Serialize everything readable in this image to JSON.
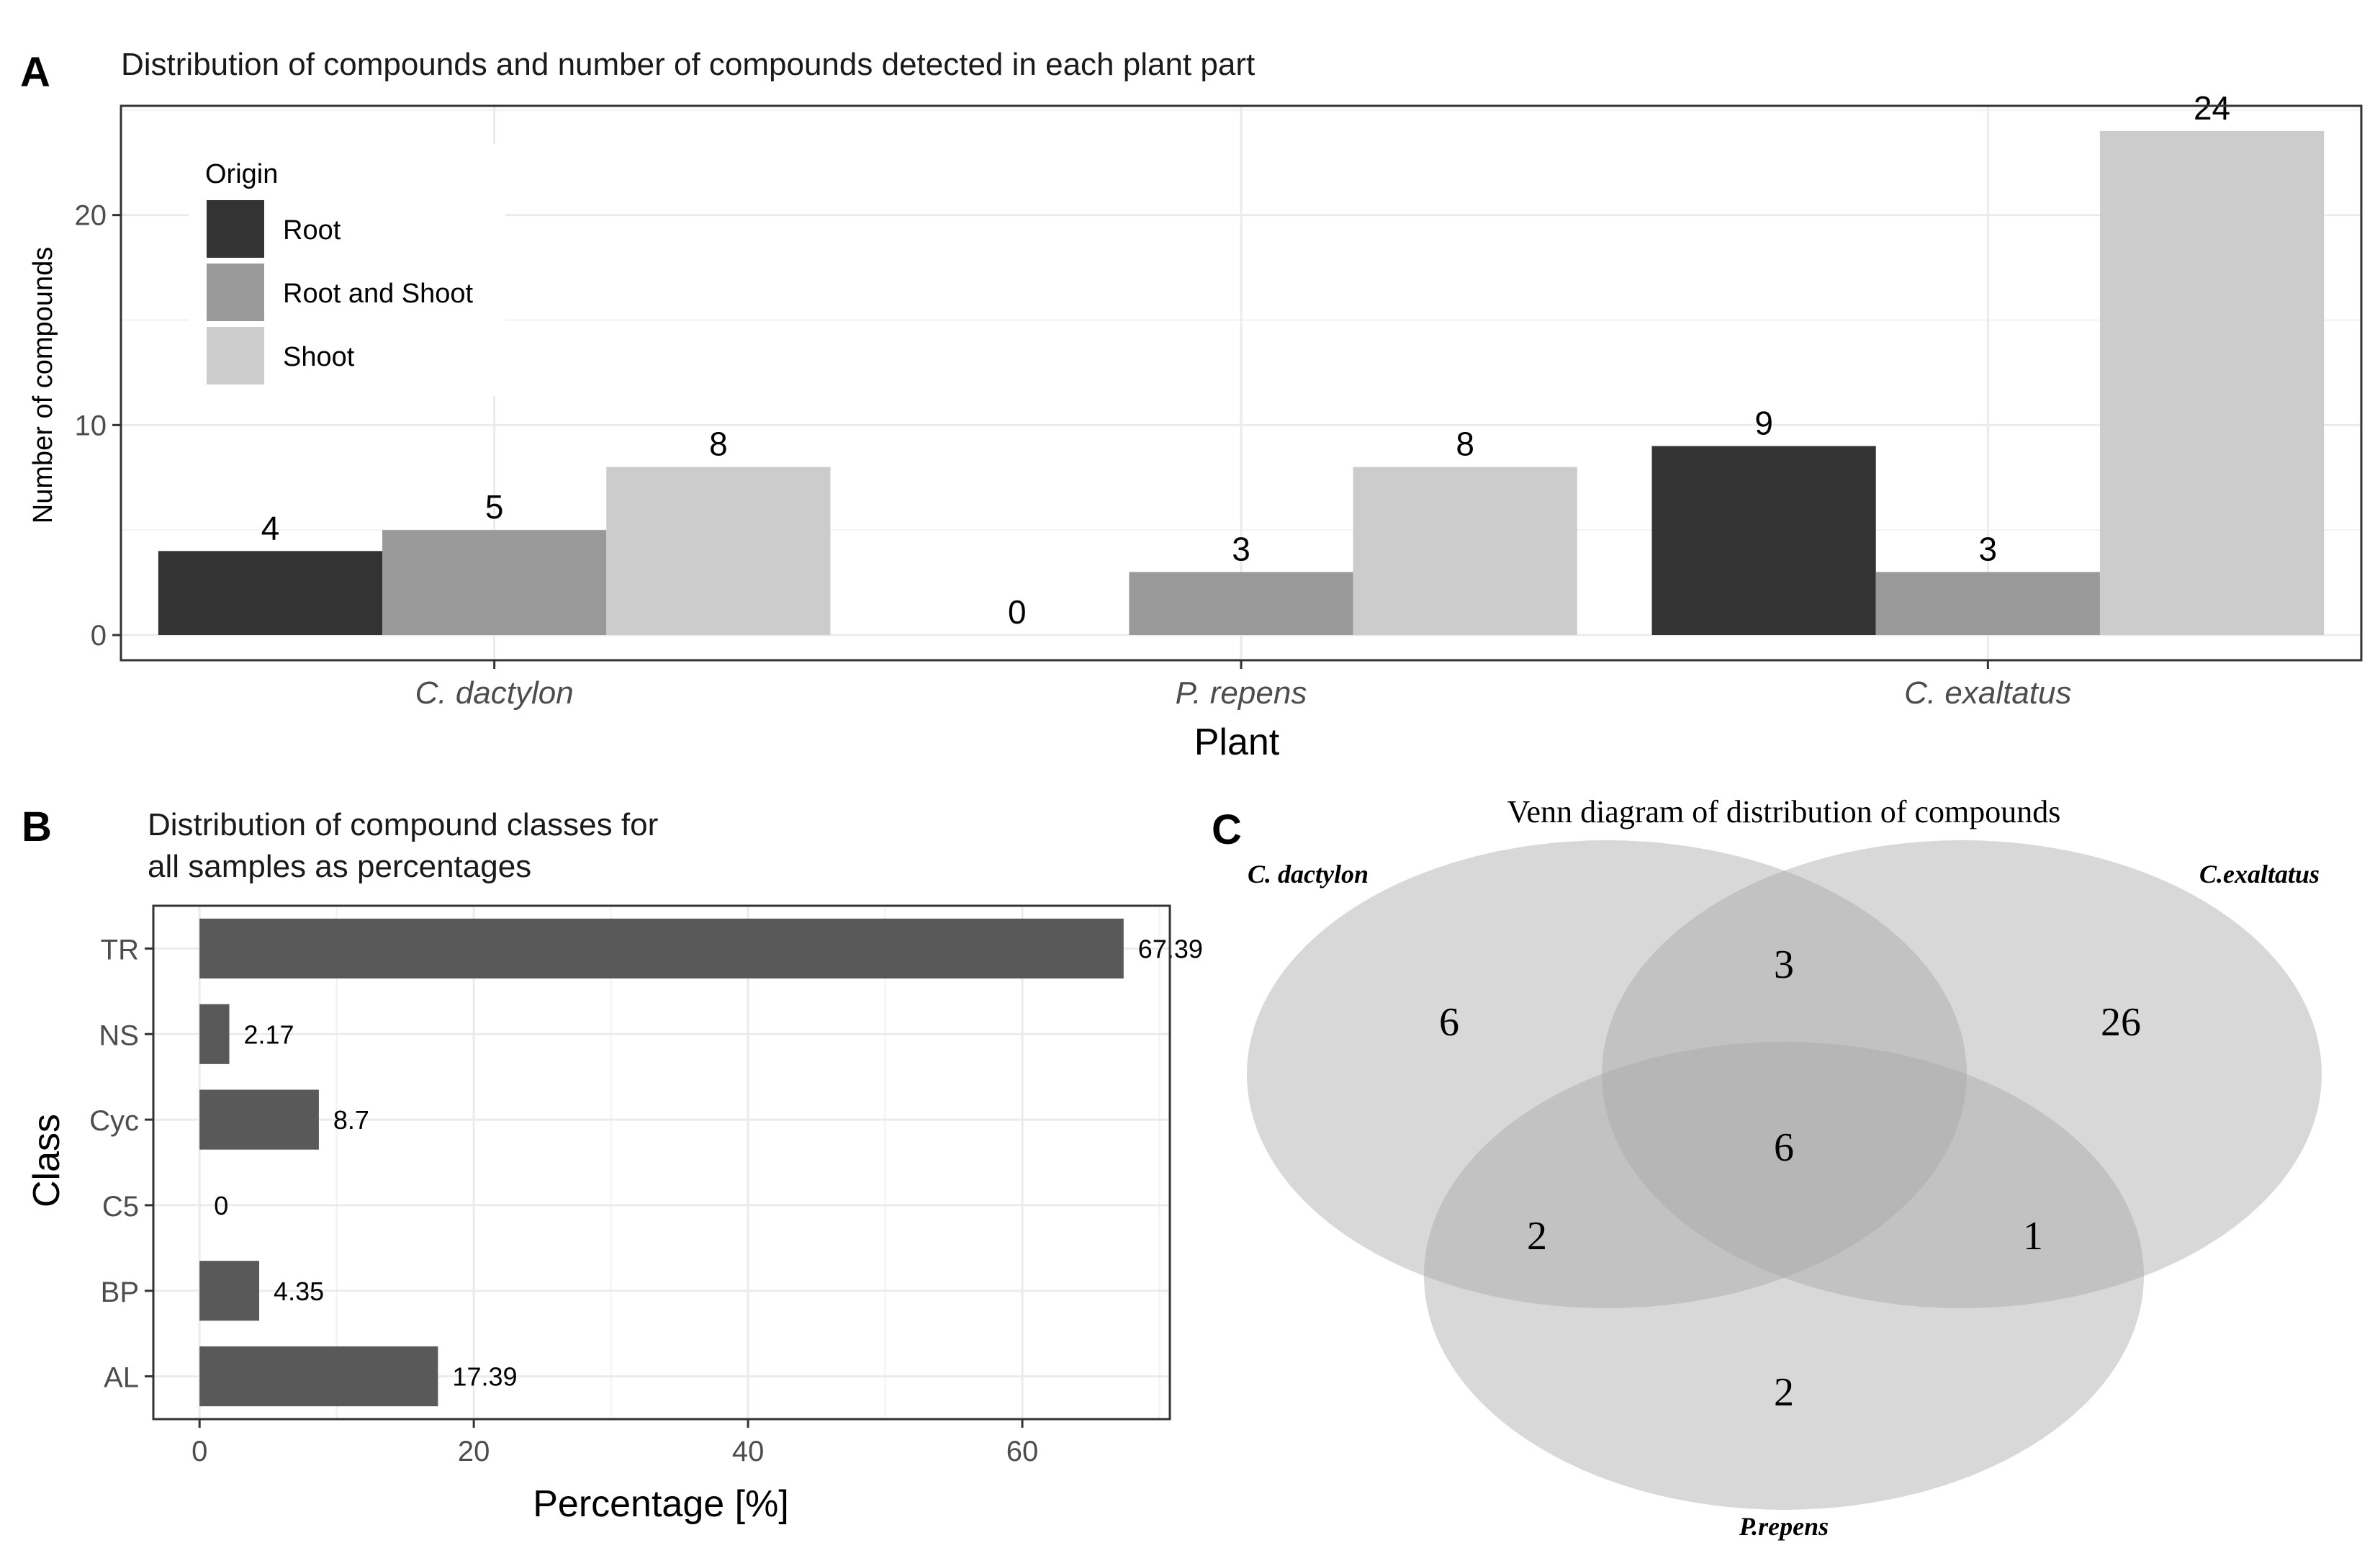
{
  "panels": {
    "a": {
      "letter": "A",
      "chart_data": {
        "type": "bar",
        "title": "Distribution of compounds and number of compounds detected in each plant part",
        "xlabel": "Plant",
        "ylabel": "Number of compounds",
        "categories": [
          "C. dactylon",
          "P. repens",
          "C. exaltatus"
        ],
        "series": [
          {
            "name": "Root",
            "color": "#333333",
            "values": [
              4,
              0,
              9
            ],
            "labels": [
              "4",
              "0",
              "9"
            ]
          },
          {
            "name": "Root and Shoot",
            "color": "#999999",
            "values": [
              5,
              3,
              3
            ],
            "labels": [
              "5",
              "3",
              "3"
            ]
          },
          {
            "name": "Shoot",
            "color": "#cccccc",
            "values": [
              8,
              8,
              24
            ],
            "labels": [
              "8",
              "8",
              "24"
            ]
          }
        ],
        "ylim": [
          -1.2,
          25.2
        ],
        "yticks": [
          0,
          10,
          20
        ],
        "ytick_labels": [
          "0",
          "10",
          "20"
        ],
        "legend_title": "Origin",
        "legend_position": "top-left",
        "grid": true
      }
    },
    "b": {
      "letter": "B",
      "chart_data": {
        "type": "bar",
        "orientation": "horizontal",
        "title": "Distribution of compound classes for all samples as percentages",
        "title_lines": [
          "Distribution of compound classes for",
          "all samples as percentages"
        ],
        "xlabel": "Percentage [%]",
        "ylabel": "Class",
        "categories": [
          "TR",
          "NS",
          "Cyc",
          "C5",
          "BP",
          "AL"
        ],
        "values": [
          67.39,
          2.17,
          8.7,
          0,
          4.35,
          17.39
        ],
        "value_labels": [
          "67.39",
          "2.17",
          "8.7",
          "0",
          "4.35",
          "17.39"
        ],
        "xlim": [
          -3.37,
          70.76
        ],
        "xticks": [
          0,
          20,
          40,
          60
        ],
        "xtick_labels": [
          "0",
          "20",
          "40",
          "60"
        ],
        "bar_color": "#595959",
        "grid": true
      }
    },
    "c": {
      "letter": "C",
      "chart_data": {
        "type": "venn",
        "title": "Venn diagram of distribution of compounds",
        "sets": [
          "C. dactylon",
          "C.exaltatus",
          "P.repens"
        ],
        "regions": {
          "dactylon_only": "6",
          "dactylon_exaltatus": "3",
          "exaltatus_only": "26",
          "all_three": "6",
          "dactylon_repens": "2",
          "exaltatus_repens": "1",
          "repens_only": "2"
        },
        "fill_color": "#a8a8a8"
      }
    }
  }
}
